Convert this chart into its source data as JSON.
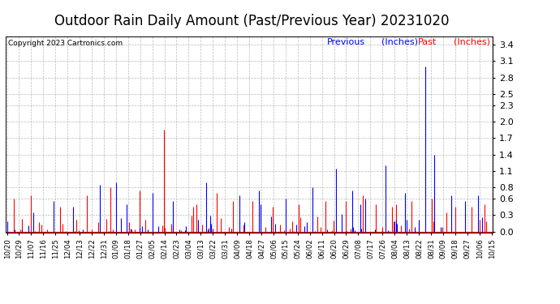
{
  "title": "Outdoor Rain Daily Amount (Past/Previous Year) 20231020",
  "copyright": "Copyright 2023 Cartronics.com",
  "legend_previous_label": "Previous",
  "legend_past_label": "Past",
  "legend_units": "(Inches)",
  "legend_previous_color": "#0000ff",
  "legend_past_color": "#ff0000",
  "background_color": "#ffffff",
  "plot_bg_color": "#ffffff",
  "grid_color": "#aaaaaa",
  "title_fontsize": 12,
  "yticks": [
    0.0,
    0.3,
    0.6,
    0.8,
    1.1,
    1.4,
    1.7,
    2.0,
    2.3,
    2.5,
    2.8,
    3.1,
    3.4
  ],
  "ymin": -0.02,
  "ymax": 3.55,
  "num_days": 366,
  "xtick_labels": [
    "10/20",
    "10/29",
    "11/07",
    "11/16",
    "11/25",
    "12/04",
    "12/13",
    "12/22",
    "12/31",
    "01/09",
    "01/18",
    "01/27",
    "02/05",
    "02/14",
    "02/23",
    "03/04",
    "03/13",
    "03/22",
    "03/31",
    "04/09",
    "04/18",
    "04/27",
    "05/06",
    "05/15",
    "05/24",
    "06/02",
    "06/11",
    "06/20",
    "06/29",
    "07/08",
    "07/17",
    "07/26",
    "08/04",
    "08/13",
    "08/22",
    "08/31",
    "09/09",
    "09/18",
    "09/27",
    "10/06",
    "10/15"
  ],
  "prev_big_days": [
    20,
    35,
    50,
    70,
    82,
    90,
    110,
    125,
    150,
    175,
    190,
    210,
    230,
    248,
    260,
    270,
    285,
    300,
    315,
    322,
    335,
    345,
    355
  ],
  "prev_big_amts": [
    0.35,
    0.55,
    0.45,
    0.85,
    0.9,
    0.5,
    0.7,
    0.55,
    0.9,
    0.65,
    0.75,
    0.6,
    0.8,
    1.15,
    0.75,
    0.6,
    1.2,
    0.7,
    3.0,
    1.4,
    0.65,
    0.55,
    0.65
  ],
  "past_big_days": [
    5,
    18,
    40,
    60,
    78,
    100,
    118,
    140,
    158,
    170,
    185,
    200,
    220,
    240,
    255,
    268,
    278,
    290,
    305,
    320,
    338,
    350,
    360
  ],
  "past_big_amts": [
    0.6,
    0.65,
    0.45,
    0.65,
    0.8,
    0.75,
    1.85,
    0.45,
    0.7,
    0.55,
    0.55,
    0.45,
    0.5,
    0.55,
    0.55,
    0.65,
    0.5,
    0.45,
    0.55,
    0.6,
    0.45,
    0.45,
    0.5
  ]
}
